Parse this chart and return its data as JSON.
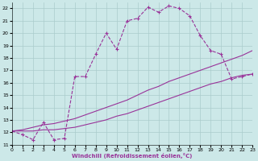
{
  "xlabel": "Windchill (Refroidissement éolien,°C)",
  "bg_color": "#cce8e8",
  "grid_color": "#aacccc",
  "line_color": "#993399",
  "xlim": [
    0,
    23
  ],
  "ylim": [
    11,
    22.5
  ],
  "xticks": [
    0,
    1,
    2,
    3,
    4,
    5,
    6,
    7,
    8,
    9,
    10,
    11,
    12,
    13,
    14,
    15,
    16,
    17,
    18,
    19,
    20,
    21,
    22,
    23
  ],
  "yticks": [
    11,
    12,
    13,
    14,
    15,
    16,
    17,
    18,
    19,
    20,
    21,
    22
  ],
  "line1_x": [
    0,
    1,
    2,
    3,
    4,
    5,
    6,
    7,
    8,
    9,
    10,
    11,
    12,
    13,
    14,
    15,
    16,
    17,
    18,
    19,
    20,
    21,
    22,
    23
  ],
  "line1_y": [
    12.1,
    11.8,
    11.4,
    12.8,
    11.4,
    11.5,
    16.5,
    16.5,
    18.3,
    20.0,
    18.7,
    21.0,
    21.2,
    22.1,
    21.7,
    22.2,
    22.0,
    21.4,
    19.8,
    18.6,
    18.3,
    16.3,
    16.5,
    16.7
  ],
  "line2_x": [
    0,
    1,
    2,
    3,
    4,
    5,
    6,
    7,
    8,
    9,
    10,
    11,
    12,
    13,
    14,
    15,
    16,
    17,
    18,
    19,
    20,
    21,
    22,
    23
  ],
  "line2_y": [
    12.1,
    12.2,
    12.4,
    12.6,
    12.7,
    12.9,
    13.1,
    13.4,
    13.7,
    14.0,
    14.3,
    14.6,
    15.0,
    15.4,
    15.7,
    16.1,
    16.4,
    16.7,
    17.0,
    17.3,
    17.6,
    17.9,
    18.2,
    18.6
  ],
  "line3_x": [
    0,
    1,
    2,
    3,
    4,
    5,
    6,
    7,
    8,
    9,
    10,
    11,
    12,
    13,
    14,
    15,
    16,
    17,
    18,
    19,
    20,
    21,
    22,
    23
  ],
  "line3_y": [
    12.1,
    12.1,
    12.1,
    12.2,
    12.2,
    12.3,
    12.4,
    12.6,
    12.8,
    13.0,
    13.3,
    13.5,
    13.8,
    14.1,
    14.4,
    14.7,
    15.0,
    15.3,
    15.6,
    15.9,
    16.1,
    16.4,
    16.6,
    16.7
  ]
}
